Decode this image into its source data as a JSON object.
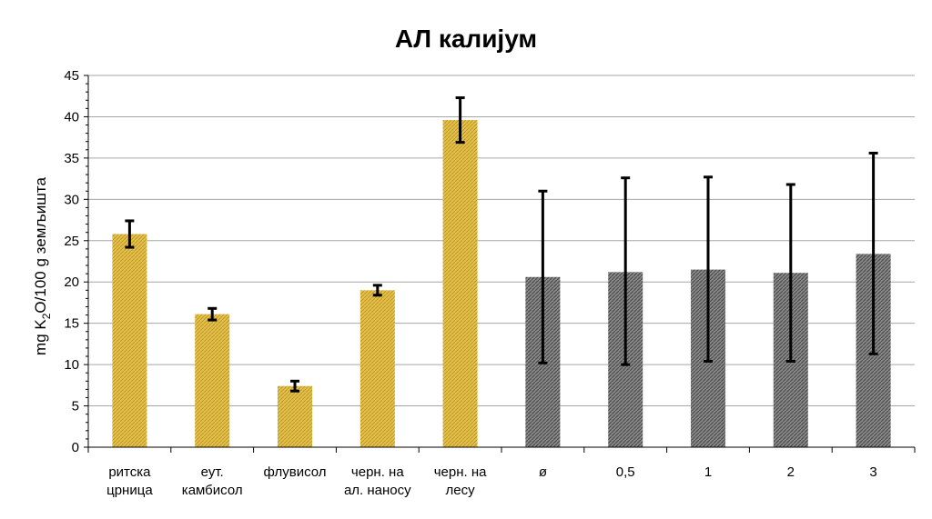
{
  "chart_data": {
    "type": "bar",
    "title": "АЛ калијум",
    "ylabel": {
      "pre": "mg K",
      "sub": "2",
      "post": "O/100 g земљишта"
    },
    "xlabel": "",
    "ylim": [
      0,
      45
    ],
    "yticks": [
      0,
      5,
      10,
      15,
      20,
      25,
      30,
      35,
      40,
      45
    ],
    "grid": true,
    "categories": [
      [
        "ритска",
        "црница"
      ],
      [
        "еут.",
        "камбисол"
      ],
      [
        "флувисол"
      ],
      [
        "черн. на",
        "ал. наносу"
      ],
      [
        "черн. на",
        "лесу"
      ],
      [
        "ø"
      ],
      [
        "0,5"
      ],
      [
        "1"
      ],
      [
        "2"
      ],
      [
        "3"
      ]
    ],
    "values": [
      25.8,
      16.1,
      7.4,
      19.0,
      39.6,
      20.6,
      21.2,
      21.5,
      21.1,
      23.4
    ],
    "error_low": [
      24.2,
      15.4,
      6.8,
      18.4,
      36.9,
      10.2,
      10.0,
      10.4,
      10.4,
      11.3
    ],
    "error_high": [
      27.4,
      16.8,
      8.0,
      19.6,
      42.3,
      31.0,
      32.6,
      32.7,
      31.8,
      35.6
    ],
    "colors": [
      "#d9b43c",
      "#d9b43c",
      "#d9b43c",
      "#d9b43c",
      "#d9b43c",
      "#7a7a7a",
      "#7a7a7a",
      "#7a7a7a",
      "#7a7a7a",
      "#7a7a7a"
    ]
  }
}
